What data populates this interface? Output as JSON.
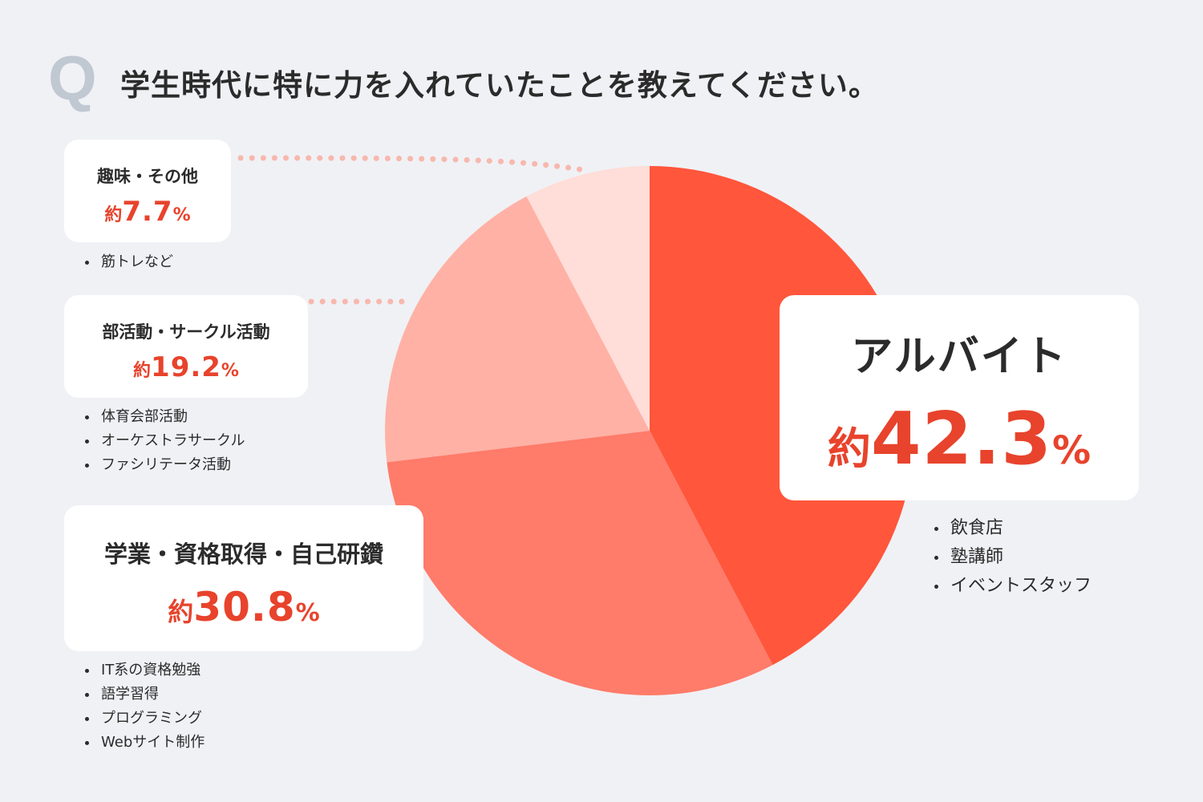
{
  "question": {
    "mark": "Q",
    "text": "学生時代に特に力を入れていたことを教えてください。"
  },
  "chart_data": {
    "type": "pie",
    "categories": [
      "アルバイト",
      "学業・資格取得・自己研鑽",
      "部活動・サークル活動",
      "趣味・その他"
    ],
    "values": [
      42.3,
      30.8,
      19.2,
      7.7
    ],
    "colors": [
      "#ff563c",
      "#ff7b6a",
      "#ffb1a5",
      "#ffddd8"
    ],
    "start_angle_deg": 0,
    "direction": "clockwise"
  },
  "cards": {
    "job": {
      "label": "アルバイト",
      "prefix": "約",
      "value": "42.3",
      "suffix": "%",
      "examples": [
        "飲食店",
        "塾講師",
        "イベントスタッフ"
      ]
    },
    "study": {
      "label": "学業・資格取得・自己研鑽",
      "prefix": "約",
      "value": "30.8",
      "suffix": "%",
      "examples": [
        "IT系の資格勉強",
        "語学習得",
        "プログラミング",
        "Webサイト制作"
      ]
    },
    "club": {
      "label": "部活動・サークル活動",
      "prefix": "約",
      "value": "19.2",
      "suffix": "%",
      "examples": [
        "体育会部活動",
        "オーケストラサークル",
        "ファシリテータ活動"
      ]
    },
    "hobby": {
      "label": "趣味・その他",
      "prefix": "約",
      "value": "7.7",
      "suffix": "%",
      "examples": [
        "筋トレなど"
      ]
    }
  },
  "accent_color": "#e8432c"
}
